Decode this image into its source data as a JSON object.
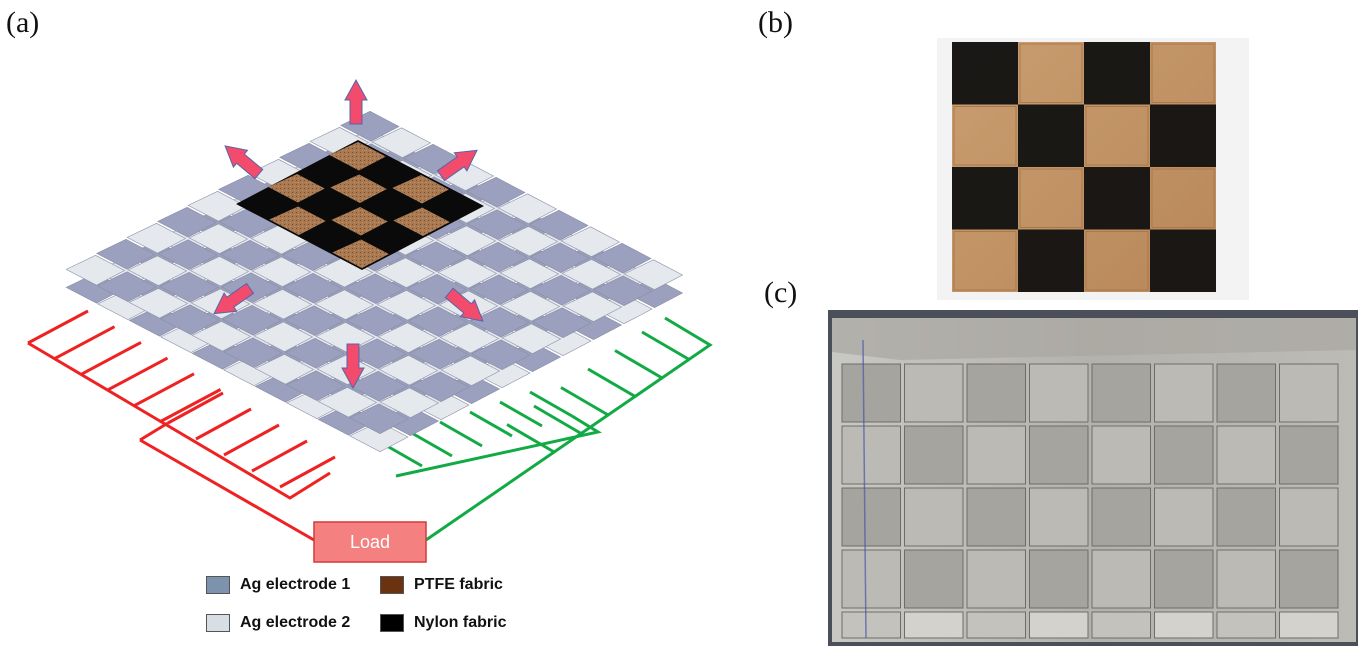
{
  "panels": {
    "a": "(a)",
    "b": "(b)",
    "c": "(c)"
  },
  "load_label": "Load",
  "legend": [
    {
      "label": "Ag electrode 1",
      "color": "#7d93ad"
    },
    {
      "label": "Ag electrode 2",
      "color": "#d8dee3"
    },
    {
      "label": "PTFE fabric",
      "color": "#6b3210"
    },
    {
      "label": "Nylon fabric",
      "color": "#000000"
    }
  ],
  "colors": {
    "electrode1": "#9aa0bd",
    "electrode2": "#e5e9ee",
    "ptfe": "#9c6b45",
    "nylon": "#0a0a0a",
    "arrow": "#f24b6b",
    "wire_left": "#ee2222",
    "wire_right": "#11aa44",
    "load_fill": "#f58080"
  }
}
